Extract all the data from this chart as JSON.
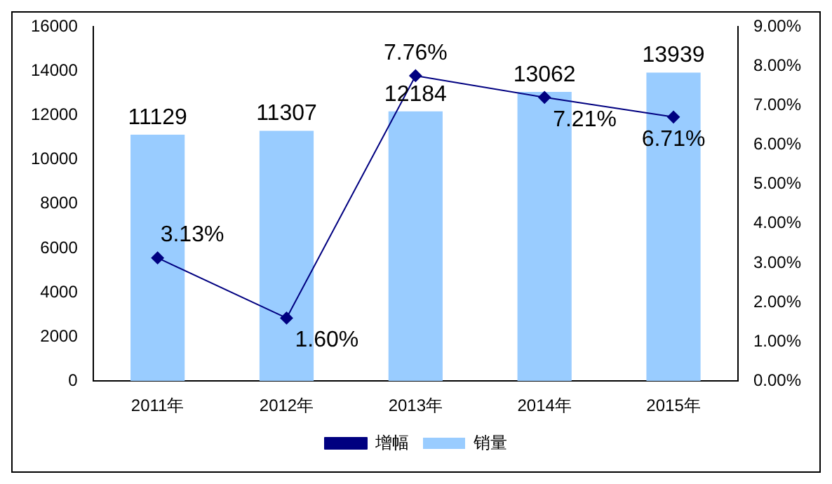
{
  "chart_data": {
    "type": "bar",
    "categories": [
      "2011年",
      "2012年",
      "2013年",
      "2014年",
      "2015年"
    ],
    "series": [
      {
        "name": "销量",
        "color": "#99ccff",
        "values": [
          11129,
          11307,
          12184,
          13062,
          13939
        ],
        "value_labels": [
          "11129",
          "11307",
          "12184",
          "13062",
          "13939"
        ]
      },
      {
        "name": "增幅",
        "type": "line",
        "axis": "y2",
        "color": "#000080",
        "values": [
          3.13,
          1.6,
          7.76,
          7.21,
          6.71
        ],
        "value_labels": [
          "3.13%",
          "1.60%",
          "7.76%",
          "7.21%",
          "6.71%"
        ]
      }
    ],
    "ylim": [
      0,
      16000
    ],
    "yticks": [
      0,
      2000,
      4000,
      6000,
      8000,
      10000,
      12000,
      14000,
      16000
    ],
    "y2lim": [
      0,
      9
    ],
    "y2ticks": [
      {
        "value": 0,
        "label": "0.00%"
      },
      {
        "value": 1,
        "label": "1.00%"
      },
      {
        "value": 2,
        "label": "2.00%"
      },
      {
        "value": 3,
        "label": "3.00%"
      },
      {
        "value": 4,
        "label": "4.00%"
      },
      {
        "value": 5,
        "label": "5.00%"
      },
      {
        "value": 6,
        "label": "6.00%"
      },
      {
        "value": 7,
        "label": "7.00%"
      },
      {
        "value": 8,
        "label": "8.00%"
      },
      {
        "value": 9,
        "label": "9.00%"
      }
    ],
    "grid": false,
    "legend": "bottom",
    "marker": "diamond",
    "line_style": "solid"
  }
}
